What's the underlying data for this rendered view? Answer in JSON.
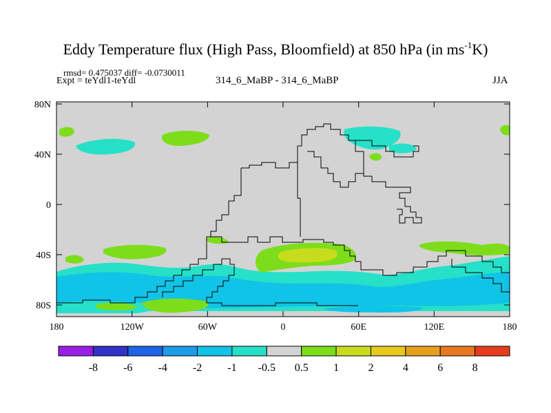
{
  "title_main": "Eddy Temperature flux (High Pass, Bloomfield) at 850 hPa (in ms",
  "title_sup": "-1",
  "title_tail": "K)",
  "stats_line": "rmsd= 0.475037 diff= -0.0730011",
  "expt_line": "Expt = teYdl1-teYdl",
  "case_line": "314_6_MaBP - 314_6_MaBP",
  "season": "JJA",
  "lat_ticks": [
    "80N",
    "40N",
    "0",
    "40S",
    "80S"
  ],
  "lon_ticks": [
    "180",
    "120W",
    "60W",
    "0",
    "60E",
    "120E",
    "180"
  ],
  "colorbar": {
    "colors": [
      "#9a1fe6",
      "#3232c8",
      "#1e64e6",
      "#1e9be6",
      "#11c3e6",
      "#26e0c8",
      "#d3d3d3",
      "#7ddd1a",
      "#c8dc1e",
      "#e6c81e",
      "#e6a01e",
      "#e6781e",
      "#e63c1e"
    ],
    "labels": [
      "-8",
      "-6",
      "-4",
      "-2",
      "-1",
      "-0.5",
      "0.5",
      "1",
      "2",
      "4",
      "6",
      "8"
    ]
  },
  "colors": {
    "neutral": "#d3d3d3",
    "cyan": "#26e0c8",
    "light_blue": "#11c3e6",
    "green": "#7ddd1a",
    "yellow_green": "#c8dc1e"
  }
}
